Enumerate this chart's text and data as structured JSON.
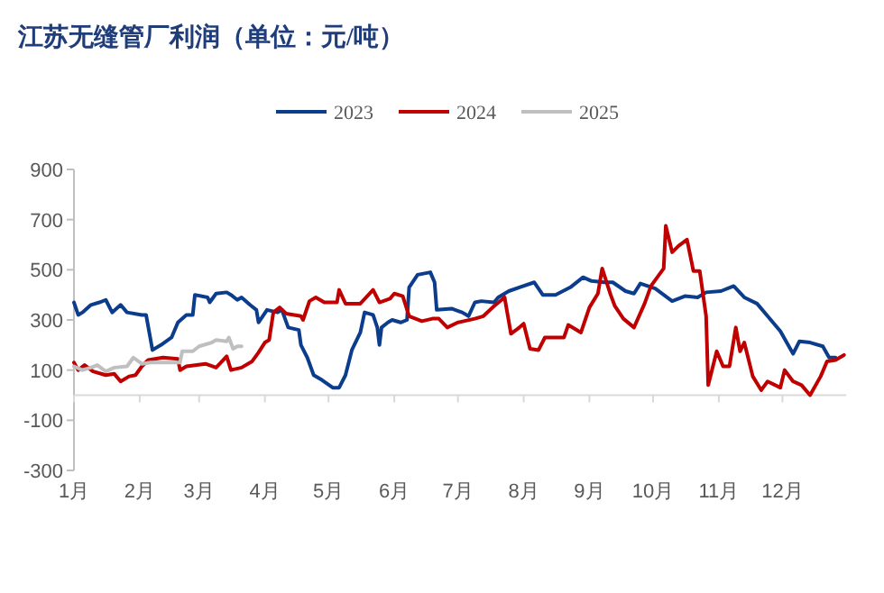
{
  "chart_data": {
    "type": "line",
    "title": "江苏无缝管厂利润（单位：元/吨）",
    "legend": "top",
    "xlim": [
      "--01-01",
      "--12-31"
    ],
    "xticks": [
      {
        "value": "--01-01",
        "label": "1月"
      },
      {
        "value": "--02-01",
        "label": "2月"
      },
      {
        "value": "--03-01",
        "label": "3月"
      },
      {
        "value": "--04-01",
        "label": "4月"
      },
      {
        "value": "--05-01",
        "label": "5月"
      },
      {
        "value": "--06-01",
        "label": "6月"
      },
      {
        "value": "--07-01",
        "label": "7月"
      },
      {
        "value": "--08-01",
        "label": "8月"
      },
      {
        "value": "--09-01",
        "label": "9月"
      },
      {
        "value": "--10-01",
        "label": "10月"
      },
      {
        "value": "--11-01",
        "label": "11月"
      },
      {
        "value": "--12-01",
        "label": "12月"
      }
    ],
    "ylim": [
      -300,
      900
    ],
    "yticks": [
      -300,
      -100,
      100,
      300,
      500,
      700,
      900
    ],
    "series": [
      {
        "name": "2023",
        "color": "#0b3d8c",
        "x": [
          "--01-01",
          "--01-03",
          "--01-05",
          "--01-09",
          "--01-13",
          "--01-16",
          "--01-19",
          "--01-23",
          "--01-26",
          "--02-02",
          "--02-04",
          "--02-07",
          "--02-11",
          "--02-16",
          "--02-19",
          "--02-23",
          "--02-26",
          "--02-27",
          "--03-05",
          "--03-06",
          "--03-09",
          "--03-14",
          "--03-16",
          "--03-19",
          "--03-21",
          "--03-25",
          "--03-28",
          "--03-29",
          "--04-02",
          "--04-07",
          "--04-09",
          "--04-12",
          "--04-17",
          "--04-18",
          "--04-21",
          "--04-24",
          "--04-28",
          "--05-03",
          "--05-06",
          "--05-09",
          "--05-12",
          "--05-16",
          "--05-18",
          "--05-22",
          "--05-24",
          "--05-25",
          "--05-26",
          "--05-29",
          "--05-31",
          "--06-04",
          "--06-07",
          "--06-08",
          "--06-12",
          "--06-18",
          "--06-20",
          "--06-21",
          "--06-28",
          "--07-03",
          "--07-06",
          "--07-09",
          "--07-12",
          "--07-18",
          "--07-20",
          "--07-25",
          "--07-30",
          "--08-06",
          "--08-10",
          "--08-16",
          "--08-23",
          "--08-29",
          "--09-02",
          "--09-08",
          "--09-12",
          "--09-18",
          "--09-22",
          "--09-25",
          "--10-02",
          "--10-10",
          "--10-16",
          "--10-22",
          "--10-26",
          "--11-02",
          "--11-08",
          "--11-13",
          "--11-19",
          "--11-24",
          "--11-30",
          "--12-06",
          "--12-09",
          "--12-14",
          "--12-20",
          "--12-23",
          "--12-26"
        ],
        "values": [
          370,
          320,
          330,
          360,
          370,
          380,
          330,
          360,
          330,
          320,
          320,
          180,
          200,
          230,
          290,
          320,
          320,
          400,
          390,
          370,
          405,
          410,
          400,
          380,
          390,
          360,
          340,
          290,
          340,
          330,
          340,
          270,
          260,
          200,
          150,
          80,
          60,
          30,
          30,
          80,
          180,
          250,
          330,
          320,
          270,
          200,
          270,
          290,
          300,
          290,
          300,
          430,
          480,
          490,
          450,
          340,
          345,
          330,
          315,
          370,
          375,
          370,
          390,
          415,
          430,
          450,
          400,
          400,
          430,
          470,
          455,
          450,
          450,
          415,
          405,
          445,
          425,
          375,
          395,
          390,
          410,
          415,
          435,
          390,
          365,
          315,
          255,
          165,
          215,
          210,
          195,
          150,
          150
        ]
      },
      {
        "name": "2024",
        "color": "#c00000",
        "x": [
          "--01-01",
          "--01-03",
          "--01-06",
          "--01-10",
          "--01-16",
          "--01-20",
          "--01-23",
          "--01-27",
          "--01-30",
          "--02-02",
          "--02-05",
          "--02-12",
          "--02-19",
          "--02-20",
          "--02-23",
          "--03-04",
          "--03-09",
          "--03-14",
          "--03-16",
          "--03-21",
          "--03-26",
          "--03-29",
          "--04-01",
          "--04-03",
          "--04-05",
          "--04-08",
          "--04-11",
          "--04-18",
          "--04-19",
          "--04-22",
          "--04-25",
          "--04-29",
          "--05-05",
          "--05-06",
          "--05-09",
          "--05-16",
          "--05-22",
          "--05-25",
          "--05-30",
          "--06-01",
          "--06-05",
          "--06-08",
          "--06-14",
          "--06-19",
          "--06-22",
          "--06-26",
          "--07-01",
          "--07-09",
          "--07-13",
          "--07-18",
          "--07-23",
          "--07-26",
          "--07-30",
          "--08-01",
          "--08-04",
          "--08-08",
          "--08-11",
          "--08-16",
          "--08-20",
          "--08-22",
          "--08-28",
          "--09-01",
          "--09-05",
          "--09-07",
          "--09-11",
          "--09-13",
          "--09-17",
          "--09-22",
          "--09-27",
          "--09-30",
          "--10-06",
          "--10-07",
          "--10-10",
          "--10-13",
          "--10-17",
          "--10-20",
          "--10-23",
          "--10-26",
          "--10-27",
          "--10-31",
          "--11-03",
          "--11-06",
          "--11-09",
          "--11-11",
          "--11-13",
          "--11-17",
          "--11-21",
          "--11-24",
          "--11-30",
          "--12-02",
          "--12-06",
          "--12-10",
          "--12-14",
          "--12-19",
          "--12-22",
          "--12-26",
          "--12-30"
        ],
        "values": [
          130,
          100,
          120,
          95,
          80,
          85,
          55,
          75,
          80,
          115,
          140,
          150,
          145,
          100,
          115,
          125,
          110,
          155,
          100,
          110,
          135,
          170,
          210,
          220,
          330,
          350,
          325,
          315,
          300,
          375,
          390,
          370,
          370,
          420,
          365,
          365,
          420,
          370,
          385,
          405,
          395,
          315,
          295,
          305,
          305,
          270,
          290,
          305,
          315,
          355,
          390,
          245,
          270,
          285,
          185,
          180,
          230,
          230,
          230,
          280,
          250,
          350,
          405,
          505,
          400,
          355,
          305,
          270,
          365,
          435,
          505,
          675,
          570,
          595,
          620,
          495,
          495,
          315,
          40,
          175,
          115,
          115,
          270,
          175,
          210,
          75,
          20,
          55,
          30,
          100,
          55,
          40,
          0,
          75,
          135,
          140,
          160
        ]
      },
      {
        "name": "2025",
        "color": "#bfbfbf",
        "x": [
          "--01-01",
          "--01-05",
          "--01-09",
          "--01-12",
          "--01-16",
          "--01-20",
          "--01-26",
          "--01-29",
          "--02-02",
          "--02-06",
          "--02-15",
          "--02-20",
          "--02-21",
          "--02-26",
          "--03-01",
          "--03-07",
          "--03-09",
          "--03-14",
          "--03-15",
          "--03-17",
          "--03-19",
          "--03-21"
        ],
        "values": [
          115,
          100,
          110,
          120,
          95,
          110,
          115,
          150,
          125,
          130,
          130,
          130,
          175,
          175,
          195,
          210,
          220,
          215,
          230,
          185,
          195,
          195
        ]
      }
    ]
  }
}
